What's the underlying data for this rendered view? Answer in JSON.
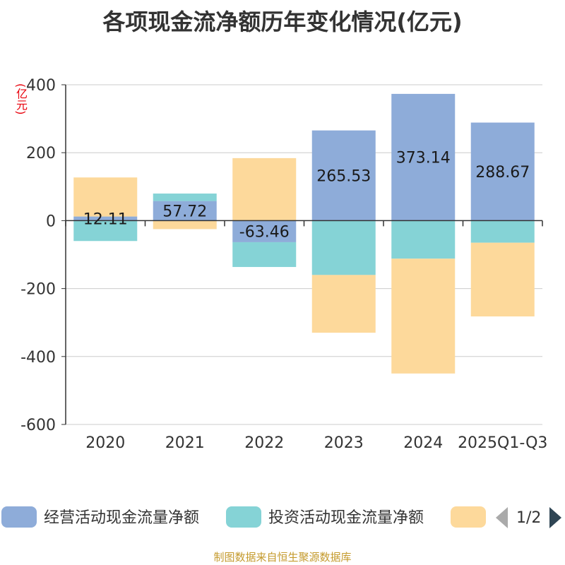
{
  "title": "各项现金流净额历年变化情况(亿元)",
  "unit_label": "(亿元)",
  "source": "制图数据来自恒生聚源数据库",
  "legend": {
    "items": [
      {
        "name": "经营活动现金流量净额",
        "color": "#8eacd9"
      },
      {
        "name": "投资活动现金流量净额",
        "color": "#85d3d6"
      },
      {
        "name": "",
        "color": "#fdd99b"
      }
    ],
    "page_text": "1/2"
  },
  "chart_data": {
    "type": "bar",
    "stacked": true,
    "categories": [
      "2020",
      "2021",
      "2022",
      "2023",
      "2024",
      "2025Q1-Q3"
    ],
    "series": [
      {
        "name": "经营活动现金流量净额",
        "color": "#8eacd9",
        "values": [
          12.11,
          57.72,
          -63.46,
          265.53,
          373.14,
          288.67
        ],
        "labels": [
          "12.11",
          "57.72",
          "-63.46",
          "265.53",
          "373.14",
          "288.67"
        ]
      },
      {
        "name": "投资活动现金流量净额",
        "color": "#85d3d6",
        "values": [
          -60,
          22,
          -73,
          -160,
          -112,
          -65
        ]
      },
      {
        "name": "",
        "color": "#fdd99b",
        "values": [
          115,
          -25,
          184,
          -170,
          -338,
          -217
        ]
      }
    ],
    "ylim": [
      -600,
      400
    ],
    "yticks": [
      -600,
      -400,
      -200,
      0,
      200,
      400
    ],
    "ylabel": "(亿元)",
    "grid": true
  }
}
